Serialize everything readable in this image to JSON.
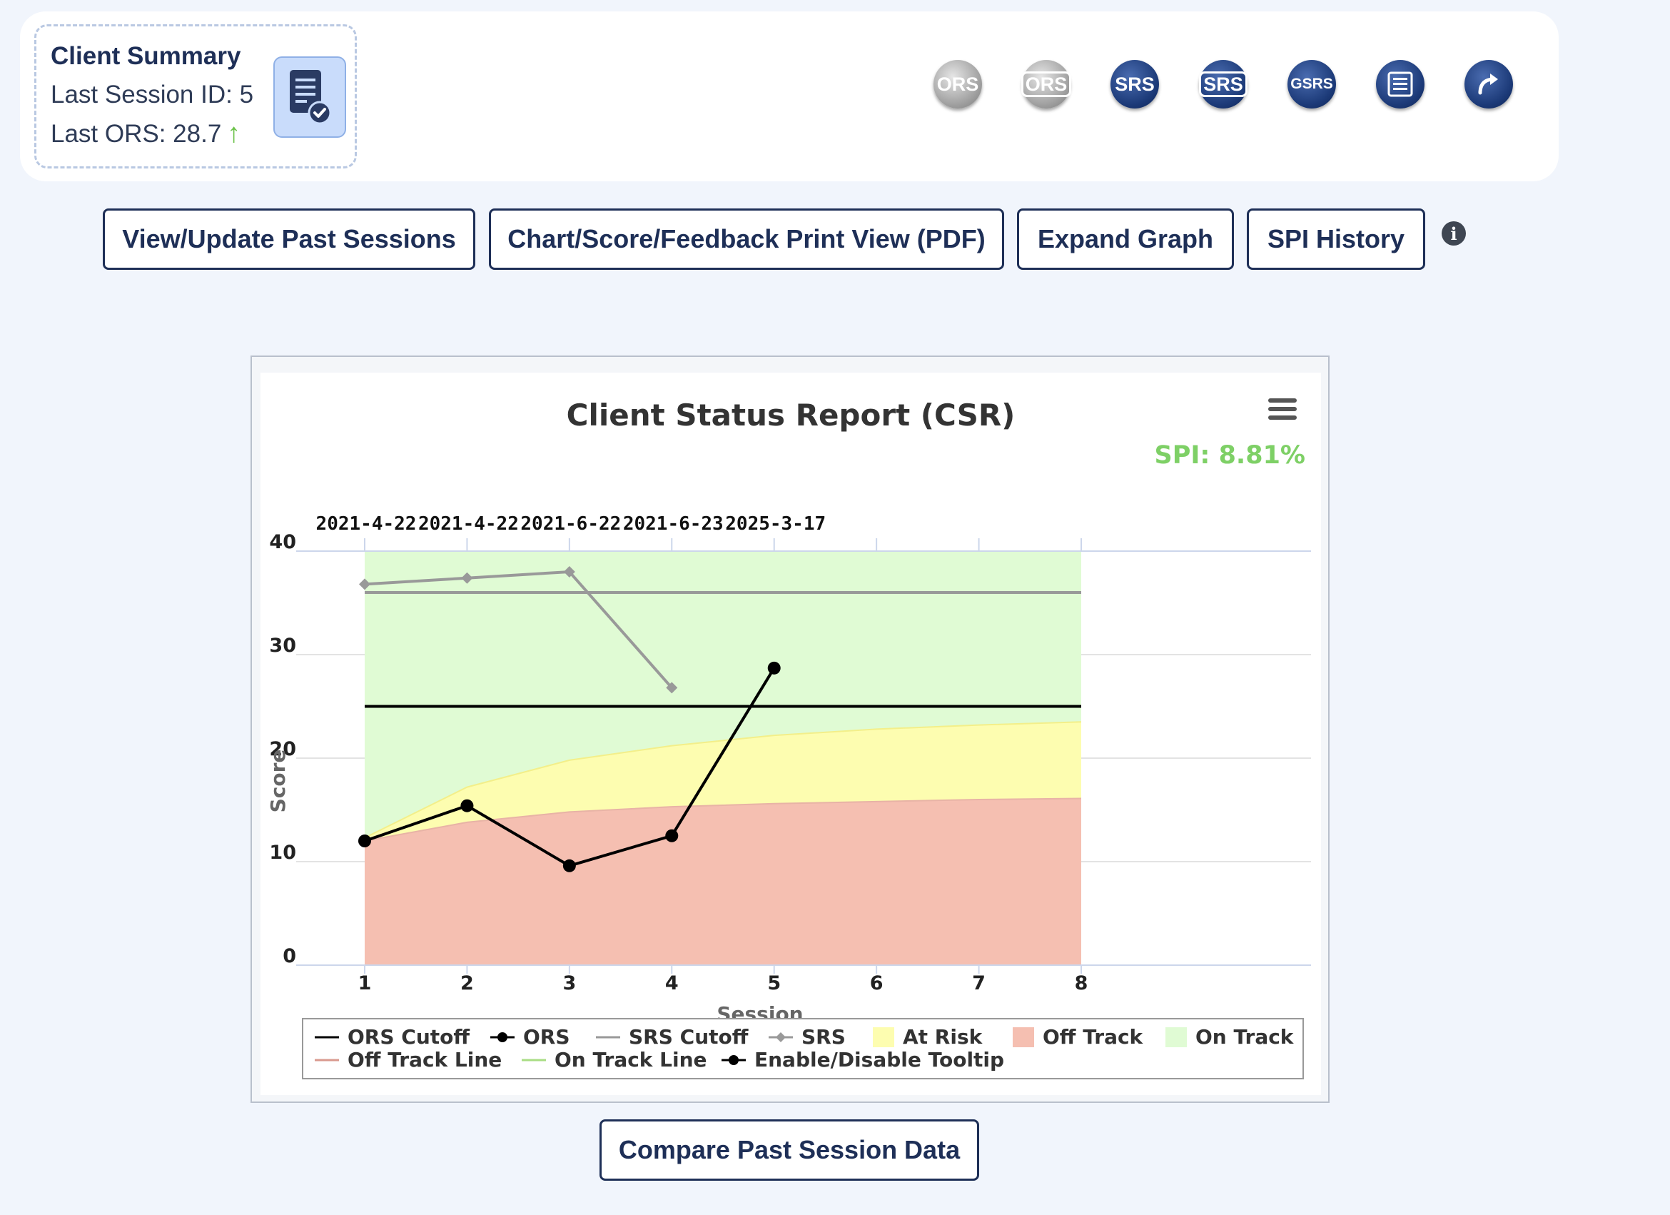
{
  "summary": {
    "title": "Client Summary",
    "last_session_label": "Last Session ID: 5",
    "last_ors_label": "Last ORS: 28.7",
    "trend_icon": "up-arrow-icon"
  },
  "toolbar_icons": [
    {
      "label": "ORS",
      "style": "gray",
      "boxed": false
    },
    {
      "label": "ORS",
      "style": "gray",
      "boxed": true
    },
    {
      "label": "SRS",
      "style": "navy",
      "boxed": false
    },
    {
      "label": "SRS",
      "style": "navy",
      "boxed": true
    },
    {
      "label": "GSRS",
      "style": "navy",
      "boxed": false
    },
    {
      "label": "",
      "style": "navy",
      "icon": "list-icon"
    },
    {
      "label": "",
      "style": "navy",
      "icon": "share-arrow-icon"
    }
  ],
  "actions": {
    "past_sessions": "View/Update Past Sessions",
    "print_view": "Chart/Score/Feedback Print View (PDF)",
    "expand_graph": "Expand Graph",
    "spi_history": "SPI History",
    "compare": "Compare Past Session Data"
  },
  "chart_data": {
    "type": "line",
    "title": "Client Status Report (CSR)",
    "spi_label": "SPI: 8.81%",
    "xlabel": "Session",
    "ylabel": "Score",
    "xlim": [
      1,
      8
    ],
    "ylim": [
      0,
      40
    ],
    "x_ticks": [
      "1",
      "2",
      "3",
      "4",
      "5",
      "6",
      "7",
      "8"
    ],
    "y_ticks": [
      "0",
      "10",
      "20",
      "30",
      "40"
    ],
    "date_labels": [
      "2021-4-22",
      "2021-4-22",
      "2021-6-22",
      "2021-6-23",
      "2025-3-17"
    ],
    "grid": true,
    "legend_position": "bottom",
    "bands": {
      "x": [
        1,
        2,
        3,
        4,
        5,
        6,
        7,
        8
      ],
      "off_track_upper": [
        12,
        13.8,
        14.8,
        15.3,
        15.6,
        15.8,
        16.0,
        16.1
      ],
      "on_track_lower": [
        12.3,
        17.2,
        19.8,
        21.2,
        22.2,
        22.8,
        23.2,
        23.5
      ],
      "top": 40
    },
    "series": [
      {
        "name": "ORS Cutoff",
        "x": [
          1,
          8
        ],
        "values": [
          25,
          25
        ],
        "color": "#000000"
      },
      {
        "name": "ORS",
        "x": [
          1,
          2,
          3,
          4,
          5
        ],
        "values": [
          12,
          15.4,
          9.6,
          12.5,
          28.7
        ],
        "color": "#000000"
      },
      {
        "name": "SRS Cutoff",
        "x": [
          1,
          8
        ],
        "values": [
          36,
          36
        ],
        "color": "#999999"
      },
      {
        "name": "SRS",
        "x": [
          1,
          2,
          3,
          4
        ],
        "values": [
          36.8,
          37.4,
          38,
          26.8
        ],
        "color": "#999999"
      }
    ],
    "legend": [
      {
        "name": "ORS Cutoff",
        "kind": "line",
        "color": "#000000"
      },
      {
        "name": "ORS",
        "kind": "line-dot",
        "color": "#000000"
      },
      {
        "name": "SRS Cutoff",
        "kind": "line",
        "color": "#999999"
      },
      {
        "name": "SRS",
        "kind": "line-diamond",
        "color": "#999999"
      },
      {
        "name": "At Risk",
        "kind": "box",
        "color": "#fdfdb0"
      },
      {
        "name": "Off Track",
        "kind": "box",
        "color": "#f5bfb1"
      },
      {
        "name": "On Track",
        "kind": "box",
        "color": "#e0fbd4"
      },
      {
        "name": "Off Track Line",
        "kind": "line",
        "color": "#d99a8f"
      },
      {
        "name": "On Track Line",
        "kind": "line",
        "color": "#a9dd84"
      },
      {
        "name": "Enable/Disable Tooltip",
        "kind": "line-dot",
        "color": "#000000"
      }
    ],
    "colors": {
      "off_track": "#f5bfb1",
      "at_risk": "#fdfdb0",
      "on_track": "#e0fbd4"
    }
  }
}
